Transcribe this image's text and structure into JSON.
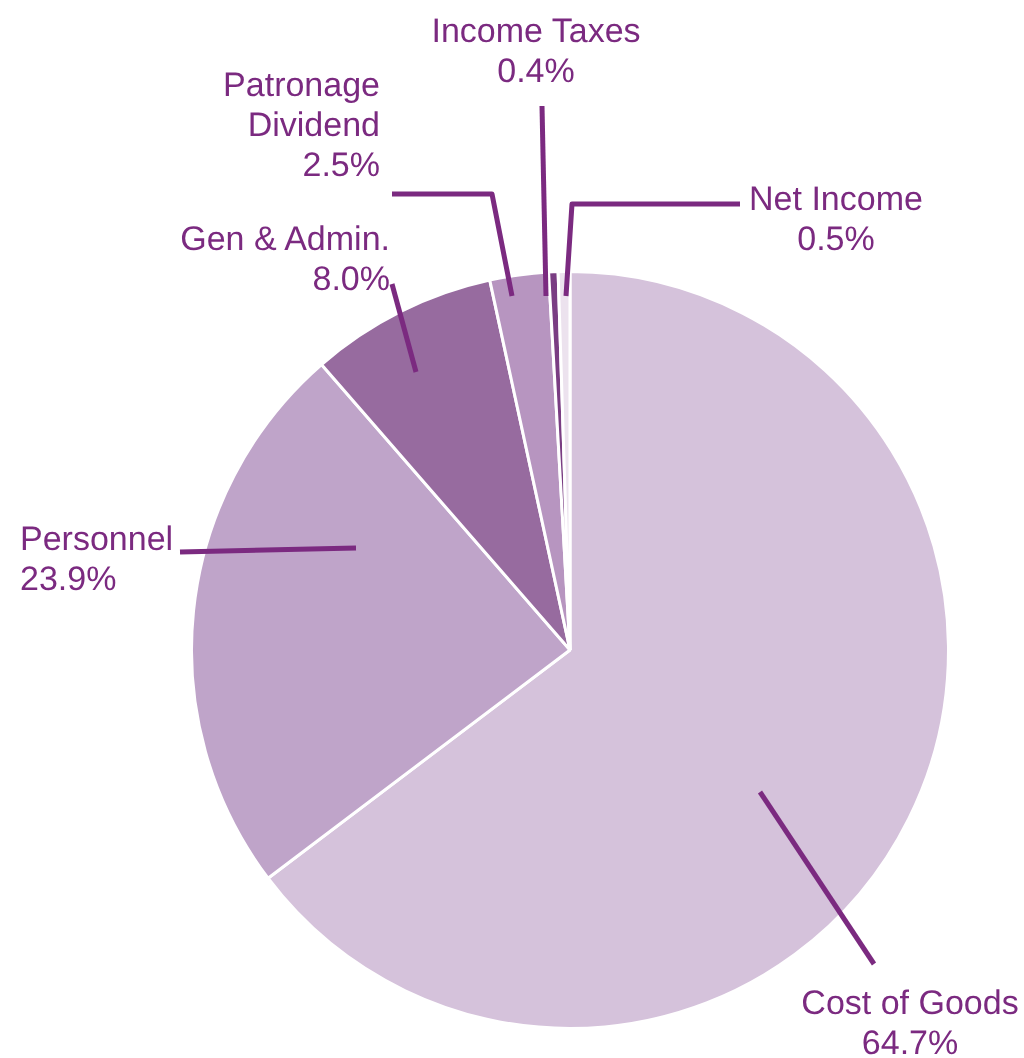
{
  "chart_data": {
    "type": "pie",
    "categories": [
      "Cost of Goods",
      "Personnel",
      "Gen & Admin.",
      "Patronage Dividend",
      "Income Taxes",
      "Net Income"
    ],
    "values": [
      64.7,
      23.9,
      8.0,
      2.5,
      0.4,
      0.5
    ],
    "colors": [
      "#d5c2db",
      "#bfa4c9",
      "#976b9f",
      "#b795c0",
      "#7a3d83",
      "#ece2ee"
    ],
    "value_labels": [
      "64.7%",
      "23.9%",
      "8.0%",
      "2.5%",
      "0.4%",
      "0.5%"
    ],
    "legend": false
  }
}
